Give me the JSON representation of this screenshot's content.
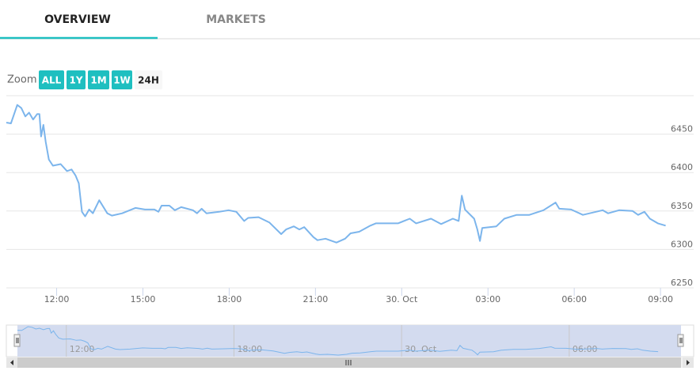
{
  "tabs": [
    {
      "label": "OVERVIEW",
      "active": true
    },
    {
      "label": "MARKETS",
      "active": false
    }
  ],
  "zoom": {
    "label": "Zoom",
    "buttons": [
      "ALL",
      "1Y",
      "1M",
      "1W",
      "24H"
    ],
    "selected": 4
  },
  "chart_data": {
    "type": "line",
    "color": "#7cb5ec",
    "grid": true,
    "x": [
      10.25,
      10.41,
      10.63,
      10.77,
      10.91,
      11.04,
      11.18,
      11.32,
      11.4,
      11.46,
      11.54,
      11.62,
      11.73,
      11.87,
      12.14,
      12.36,
      12.52,
      12.66,
      12.77,
      12.88,
      12.99,
      13.13,
      13.26,
      13.48,
      13.76,
      13.92,
      14.28,
      14.74,
      15.07,
      15.4,
      15.54,
      15.65,
      15.92,
      16.11,
      16.33,
      16.74,
      16.88,
      17.04,
      17.21,
      17.65,
      17.98,
      18.25,
      18.52,
      18.66,
      19.02,
      19.4,
      19.81,
      19.98,
      20.25,
      20.44,
      20.61,
      20.93,
      21.07,
      21.35,
      21.73,
      22.03,
      22.22,
      22.52,
      22.91,
      23.1,
      23.4,
      23.87,
      24.28,
      24.5,
      25.02,
      25.37,
      25.78,
      25.98,
      26.09,
      26.2,
      26.52,
      26.63,
      26.72,
      26.8,
      27.29,
      27.57,
      28.0,
      28.44,
      28.93,
      29.35,
      29.48,
      29.89,
      30.3,
      30.99,
      31.18,
      31.56,
      32.03,
      32.22,
      32.44,
      32.63,
      32.91,
      33.18
    ],
    "values": [
      6465,
      6464,
      6488,
      6484,
      6473,
      6478,
      6469,
      6476,
      6476,
      6447,
      6462,
      6440,
      6417,
      6409,
      6411,
      6402,
      6404,
      6396,
      6386,
      6349,
      6343,
      6352,
      6347,
      6364,
      6347,
      6344,
      6347,
      6354,
      6352,
      6352,
      6349,
      6357,
      6357,
      6351,
      6355,
      6351,
      6347,
      6353,
      6347,
      6349,
      6351,
      6349,
      6337,
      6341,
      6342,
      6335,
      6320,
      6326,
      6330,
      6326,
      6329,
      6316,
      6312,
      6314,
      6309,
      6314,
      6321,
      6323,
      6331,
      6334,
      6334,
      6334,
      6340,
      6334,
      6340,
      6333,
      6340,
      6337,
      6370,
      6352,
      6340,
      6326,
      6311,
      6328,
      6330,
      6340,
      6345,
      6345,
      6351,
      6361,
      6353,
      6352,
      6345,
      6351,
      6347,
      6351,
      6350,
      6345,
      6349,
      6340,
      6334,
      6331
    ],
    "xlim": [
      10.25,
      33.3
    ],
    "ylim": [
      6250,
      6500
    ],
    "yticks": [
      6250,
      6300,
      6350,
      6400,
      6450
    ],
    "xticks": [
      {
        "value": 12,
        "label": "12:00"
      },
      {
        "value": 15,
        "label": "15:00"
      },
      {
        "value": 18,
        "label": "18:00"
      },
      {
        "value": 21,
        "label": "21:00"
      },
      {
        "value": 24,
        "label": "30. Oct"
      },
      {
        "value": 27,
        "label": "03:00"
      },
      {
        "value": 30,
        "label": "06:00"
      },
      {
        "value": 33,
        "label": "09:00"
      }
    ],
    "navigator": {
      "xlim": [
        10.25,
        34.0
      ],
      "xticks": [
        {
          "value": 12,
          "label": "12:00"
        },
        {
          "value": 18,
          "label": "18:00"
        },
        {
          "value": 24,
          "label": "30. Oct"
        },
        {
          "value": 30,
          "label": "06:00"
        }
      ]
    }
  }
}
